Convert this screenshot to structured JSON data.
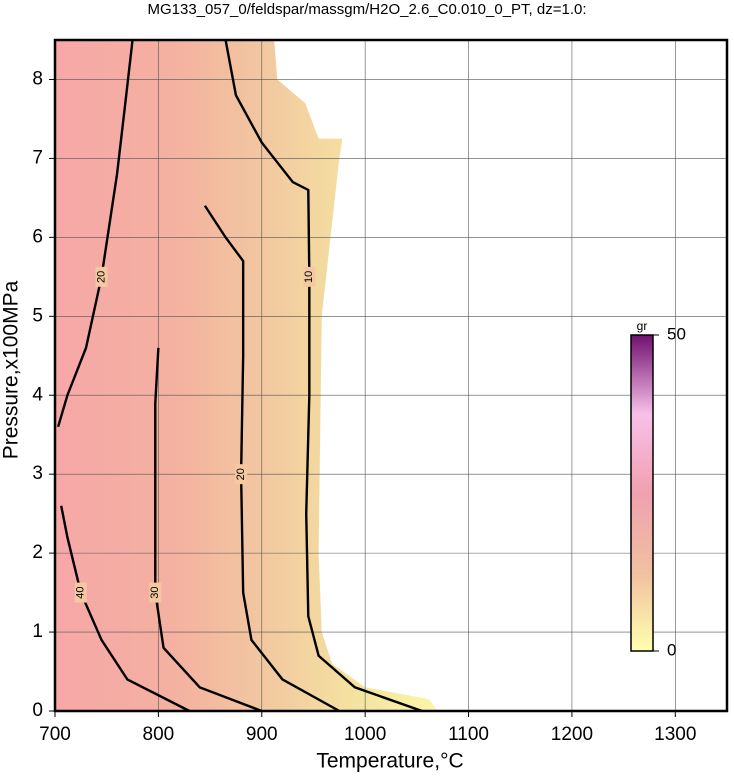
{
  "chart_data": {
    "type": "contour",
    "title": "MG133_057_0/feldspar/massgm/H2O_2.6_C0.010_0_PT, dz=1.0:",
    "x_label": "Temperature,°C",
    "y_label": "Pressure,x100MPa",
    "xlim": [
      700,
      1350
    ],
    "ylim": [
      0,
      8.5
    ],
    "xticks": [
      700,
      800,
      900,
      1000,
      1100,
      1200,
      1300
    ],
    "yticks": [
      0,
      1,
      2,
      3,
      4,
      5,
      6,
      7,
      8
    ],
    "grid": true,
    "line_color": "#000000",
    "contours": [
      {
        "level": 10,
        "x": [
          1055,
          990,
          955,
          945,
          943,
          946,
          946,
          945,
          930,
          900,
          875,
          865
        ],
        "y": [
          0,
          0.3,
          0.7,
          1.2,
          2.5,
          4,
          5.5,
          6.6,
          6.7,
          7.2,
          7.8,
          8.5
        ]
      },
      {
        "level": 20,
        "x": [
          975,
          920,
          890,
          882,
          880,
          882,
          882,
          865,
          845
        ],
        "y": [
          0,
          0.4,
          0.9,
          1.5,
          3,
          4.5,
          5.7,
          6.0,
          6.4
        ]
      },
      {
        "level": 30,
        "x": [
          900,
          840,
          805,
          797,
          797,
          797,
          800
        ],
        "y": [
          0,
          0.3,
          0.8,
          1.5,
          3,
          3.9,
          4.6
        ]
      },
      {
        "level": 40,
        "x": [
          830,
          770,
          745,
          725,
          712,
          706
        ],
        "y": [
          0,
          0.4,
          0.9,
          1.5,
          2.2,
          2.6
        ]
      },
      {
        "level": 20,
        "x": [
          703,
          712,
          730,
          745,
          760,
          768,
          775
        ],
        "y": [
          3.6,
          4.0,
          4.6,
          5.5,
          6.8,
          7.7,
          8.5
        ]
      }
    ],
    "colorbar": {
      "label": "gr",
      "lim": [
        0,
        50
      ],
      "ticks": [
        0,
        50
      ],
      "colors": [
        "#ffffb0",
        "#f0c0a0",
        "#f0a0b0",
        "#f8c0e8",
        "#701070"
      ]
    }
  }
}
